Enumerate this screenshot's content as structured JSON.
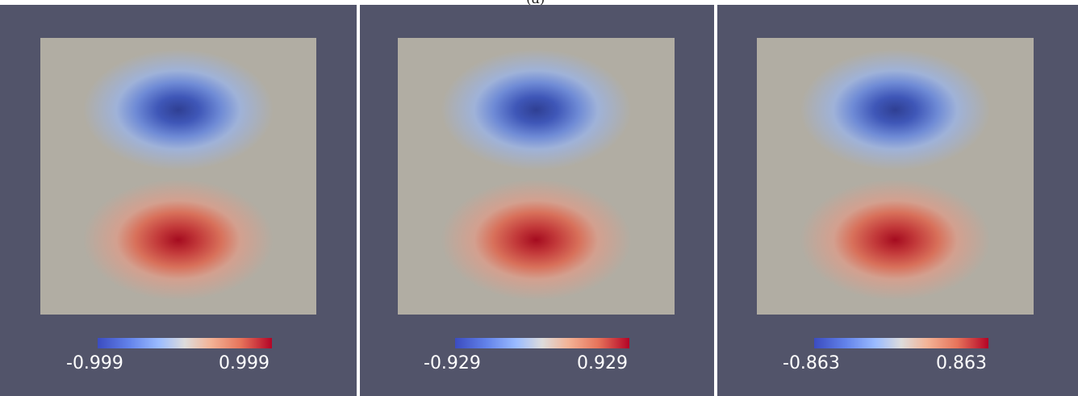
{
  "caption": "(a)",
  "panels": [
    {
      "min_label": "-0.999",
      "max_label": "0.999"
    },
    {
      "min_label": "-0.929",
      "max_label": "0.929"
    },
    {
      "min_label": "-0.863",
      "max_label": "0.863"
    }
  ],
  "colors": {
    "background": "#52546a",
    "neutral": "#b1ada3",
    "cold": "#2f3f93",
    "hot": "#a50b1f"
  },
  "colormap": "coolwarm"
}
